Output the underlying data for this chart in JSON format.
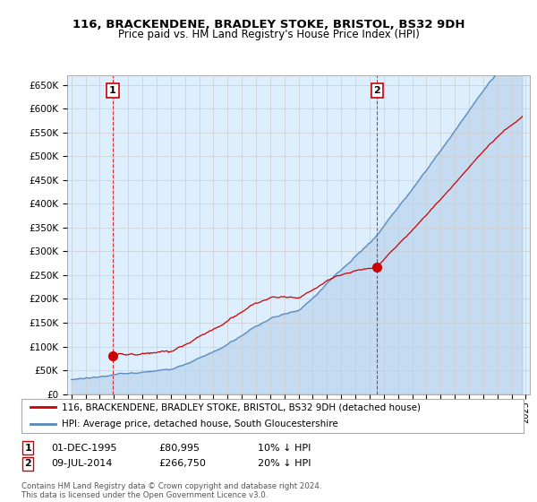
{
  "title_line1": "116, BRACKENDENE, BRADLEY STOKE, BRISTOL, BS32 9DH",
  "title_line2": "Price paid vs. HM Land Registry's House Price Index (HPI)",
  "ylim": [
    0,
    670000
  ],
  "yticks": [
    0,
    50000,
    100000,
    150000,
    200000,
    250000,
    300000,
    350000,
    400000,
    450000,
    500000,
    550000,
    600000,
    650000
  ],
  "ytick_labels": [
    "£0",
    "£50K",
    "£100K",
    "£150K",
    "£200K",
    "£250K",
    "£300K",
    "£350K",
    "£400K",
    "£450K",
    "£500K",
    "£550K",
    "£600K",
    "£650K"
  ],
  "purchase1_year": 1995.917,
  "purchase1_price": 80995,
  "purchase2_year": 2014.52,
  "purchase2_price": 266750,
  "legend_line1": "116, BRACKENDENE, BRADLEY STOKE, BRISTOL, BS32 9DH (detached house)",
  "legend_line2": "HPI: Average price, detached house, South Gloucestershire",
  "footer": "Contains HM Land Registry data © Crown copyright and database right 2024.\nThis data is licensed under the Open Government Licence v3.0.",
  "line_color_red": "#cc0000",
  "line_color_blue": "#5588bb",
  "fill_color": "#ddeeff",
  "background_color": "#ffffff",
  "grid_color": "#cccccc",
  "xtick_start": 1993,
  "xtick_end": 2025,
  "ann1_date": "01-DEC-1995",
  "ann1_price": "£80,995",
  "ann1_hpi": "10% ↓ HPI",
  "ann2_date": "09-JUL-2014",
  "ann2_price": "£266,750",
  "ann2_hpi": "20% ↓ HPI"
}
